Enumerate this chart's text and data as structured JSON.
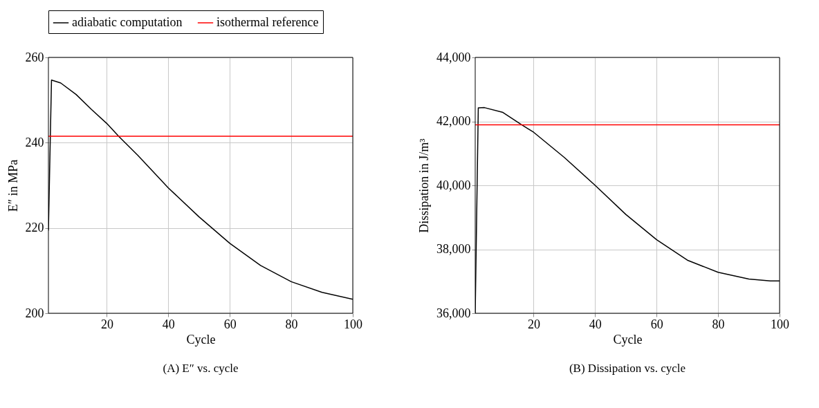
{
  "chart_data": [
    {
      "type": "line",
      "xlabel": "Cycle",
      "ylabel": "E″ in MPa",
      "xlim": [
        1,
        100
      ],
      "ylim": [
        200,
        260
      ],
      "xticks": [
        20,
        40,
        60,
        80,
        100
      ],
      "yticks": [
        200,
        220,
        240,
        260
      ],
      "grid": true,
      "legend": "top",
      "annotations": [
        "(A)  E″ vs. cycle"
      ],
      "series": [
        {
          "name": "adiabatic computation",
          "color": "#000000",
          "x": [
            1,
            2,
            5,
            10,
            15,
            20,
            24,
            30,
            40,
            50,
            60,
            70,
            80,
            90,
            100
          ],
          "values": [
            219.4,
            254.7,
            254.0,
            251.3,
            247.8,
            244.5,
            241.4,
            237.1,
            229.4,
            222.6,
            216.4,
            211.2,
            207.4,
            204.9,
            203.3
          ]
        },
        {
          "name": "isothermal reference",
          "color": "#ff0000",
          "x": [
            1,
            100
          ],
          "values": [
            241.5,
            241.5
          ]
        }
      ]
    },
    {
      "type": "line",
      "xlabel": "Cycle",
      "ylabel": "Dissipation in J/m³",
      "xlim": [
        1,
        100
      ],
      "ylim": [
        36000,
        44000
      ],
      "xticks": [
        20,
        40,
        60,
        80,
        100
      ],
      "yticks": [
        {
          "value": 36000,
          "label": "36,000"
        },
        {
          "value": 38000,
          "label": "38,000"
        },
        {
          "value": 40000,
          "label": "40,000"
        },
        {
          "value": 42000,
          "label": "42,000"
        },
        {
          "value": 44000,
          "label": "44,000"
        }
      ],
      "grid": true,
      "annotations": [
        "(B) Dissipation vs. cycle"
      ],
      "series": [
        {
          "color": "#000000",
          "x": [
            1,
            2,
            4,
            10,
            16,
            20,
            30,
            40,
            50,
            60,
            70,
            80,
            90,
            97,
            100
          ],
          "values": [
            36000,
            42420,
            42430,
            42280,
            41900,
            41660,
            40870,
            40000,
            39090,
            38300,
            37660,
            37280,
            37070,
            37010,
            37010
          ]
        },
        {
          "color": "#ff0000",
          "x": [
            1,
            100
          ],
          "values": [
            41890,
            41890
          ]
        }
      ]
    }
  ]
}
